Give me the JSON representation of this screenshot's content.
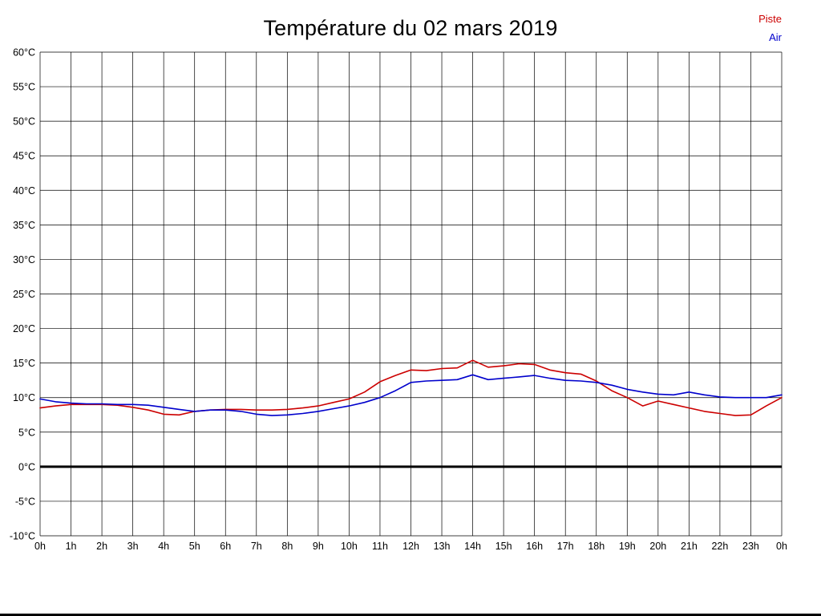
{
  "title": "Température du 02 mars 2019",
  "legend": [
    {
      "label": "Piste",
      "color": "#cc0000"
    },
    {
      "label": "Air",
      "color": "#0000cc"
    }
  ],
  "chart_data": {
    "type": "line",
    "title": "Température du 02 mars 2019",
    "xlabel": "",
    "ylabel": "",
    "grid": true,
    "legend_position": "top-right",
    "xlim": [
      0,
      24
    ],
    "ylim": [
      -10,
      60
    ],
    "y_tick_step": 5,
    "y_tick_values": [
      60,
      55,
      50,
      45,
      40,
      35,
      30,
      25,
      20,
      15,
      10,
      5,
      0,
      -5,
      -10
    ],
    "y_tick_labels": [
      "60°C",
      "55°C",
      "50°C",
      "45°C",
      "40°C",
      "35°C",
      "30°C",
      "25°C",
      "20°C",
      "15°C",
      "10°C",
      "5°C",
      "0°C",
      "-5°C",
      "-10°C"
    ],
    "x_tick_values": [
      0,
      1,
      2,
      3,
      4,
      5,
      6,
      7,
      8,
      9,
      10,
      11,
      12,
      13,
      14,
      15,
      16,
      17,
      18,
      19,
      20,
      21,
      22,
      23,
      24
    ],
    "x_tick_labels": [
      "0h",
      "1h",
      "2h",
      "3h",
      "4h",
      "5h",
      "6h",
      "7h",
      "8h",
      "9h",
      "10h",
      "11h",
      "12h",
      "13h",
      "14h",
      "15h",
      "16h",
      "17h",
      "18h",
      "19h",
      "20h",
      "21h",
      "22h",
      "23h",
      "0h"
    ],
    "zero_line": true,
    "x_step_hours": 0.5,
    "series": [
      {
        "name": "Piste",
        "color": "#cc0000",
        "values": [
          8.5,
          8.8,
          9.0,
          9.0,
          9.0,
          8.9,
          8.6,
          8.2,
          7.6,
          7.5,
          8.0,
          8.2,
          8.3,
          8.3,
          8.2,
          8.2,
          8.3,
          8.5,
          8.8,
          9.3,
          9.8,
          10.8,
          12.3,
          13.2,
          14.0,
          13.9,
          14.2,
          14.3,
          15.4,
          14.4,
          14.6,
          14.9,
          14.8,
          14.0,
          13.6,
          13.4,
          12.4,
          11.0,
          10.0,
          8.8,
          9.5,
          9.0,
          8.5,
          8.0,
          7.7,
          7.4,
          7.5,
          8.8,
          10.0
        ]
      },
      {
        "name": "Air",
        "color": "#0000cc",
        "values": [
          9.8,
          9.4,
          9.2,
          9.1,
          9.1,
          9.0,
          9.0,
          8.9,
          8.6,
          8.3,
          8.0,
          8.2,
          8.2,
          8.0,
          7.6,
          7.4,
          7.5,
          7.7,
          8.0,
          8.4,
          8.8,
          9.3,
          10.0,
          11.0,
          12.2,
          12.4,
          12.5,
          12.6,
          13.3,
          12.6,
          12.8,
          13.0,
          13.2,
          12.8,
          12.5,
          12.4,
          12.2,
          11.8,
          11.2,
          10.8,
          10.5,
          10.4,
          10.8,
          10.4,
          10.1,
          10.0,
          10.0,
          10.0,
          10.4
        ]
      }
    ]
  }
}
